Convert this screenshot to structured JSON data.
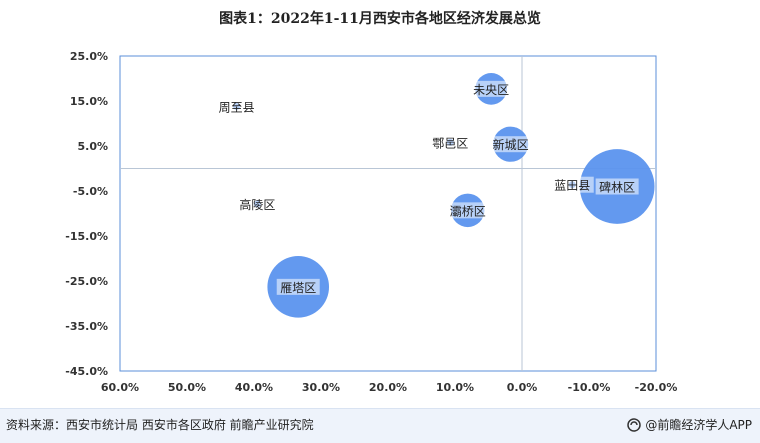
{
  "chart_data": {
    "type": "scatter",
    "title": "图表1：2022年1-11月西安市各地区经济发展总览",
    "xlabel": "",
    "ylabel": "",
    "xlim": [
      60,
      -20
    ],
    "ylim": [
      -45,
      25
    ],
    "x_ticks": [
      "60.0%",
      "50.0%",
      "40.0%",
      "30.0%",
      "20.0%",
      "10.0%",
      "0.0%",
      "-10.0%",
      "-20.0%"
    ],
    "y_ticks": [
      "25.0%",
      "15.0%",
      "5.0%",
      "-5.0%",
      "-15.0%",
      "-25.0%",
      "-35.0%",
      "-45.0%"
    ],
    "crosshair": {
      "x": 0,
      "y": 0
    },
    "grid": false,
    "points": [
      {
        "label": "未央区",
        "x": 4.6,
        "y": 17.7,
        "size": 36
      },
      {
        "label": "周至县",
        "x": 42.6,
        "y": 13.8,
        "size": 5
      },
      {
        "label": "鄠邑区",
        "x": 10.7,
        "y": 5.8,
        "size": 6
      },
      {
        "label": "新城区",
        "x": 1.7,
        "y": 5.4,
        "size": 40
      },
      {
        "label": "蓝田县",
        "x": -7.5,
        "y": -3.6,
        "size": 6
      },
      {
        "label": "碑林区",
        "x": -14.2,
        "y": -4.0,
        "size": 85
      },
      {
        "label": "高陵区",
        "x": 39.5,
        "y": -7.9,
        "size": 5
      },
      {
        "label": "灞桥区",
        "x": 8.1,
        "y": -9.3,
        "size": 38
      },
      {
        "label": "雁塔区",
        "x": 33.4,
        "y": -26.3,
        "size": 70
      }
    ],
    "colors": {
      "bubble": "#5b93ee",
      "border": "#5b8fd9",
      "crosshair": "#b9c6d6",
      "tick": "#333333"
    }
  },
  "footer": {
    "source": "资料来源：西安市统计局 西安市各区政府 前瞻产业研究院",
    "brand": "@前瞻经济学人APP"
  }
}
